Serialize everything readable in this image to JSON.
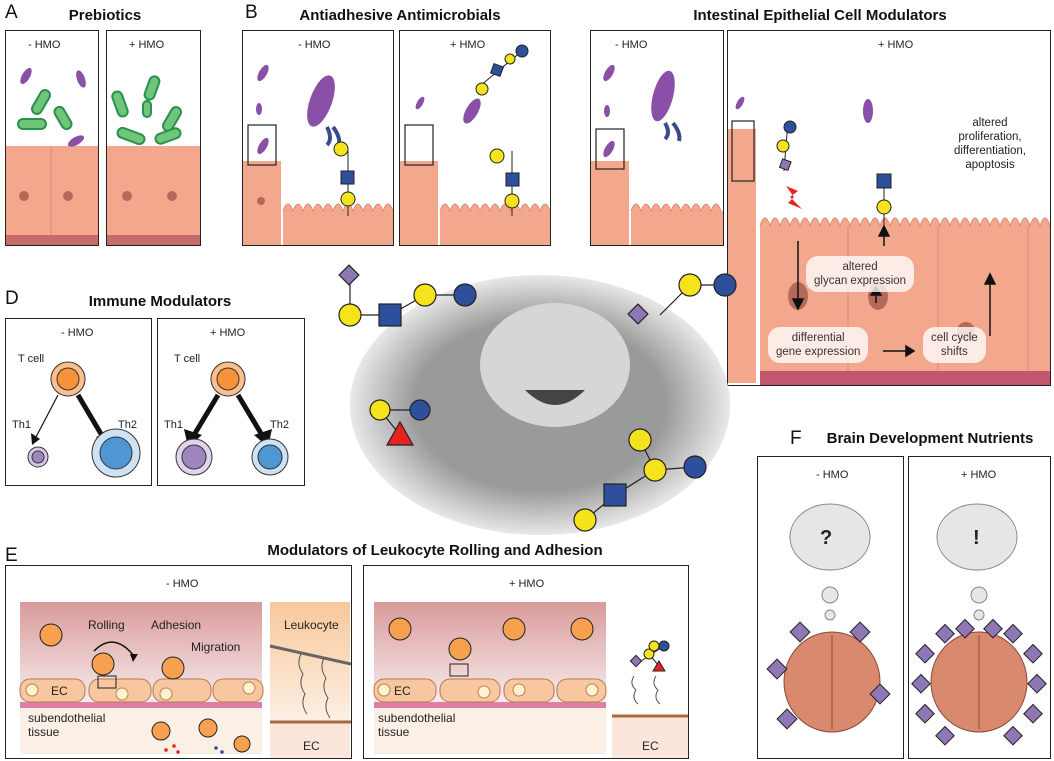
{
  "panel_a": {
    "letter": "A",
    "title": "Prebiotics",
    "minus": "- HMO",
    "plus": "+ HMO"
  },
  "panel_b": {
    "letter": "B",
    "title": "Antiadhesive Antimicrobials",
    "minus": "- HMO",
    "plus": "+ HMO"
  },
  "panel_c": {
    "title": "Intestinal Epithelial Cell Modulators",
    "minus": "- HMO",
    "plus": "+ HMO",
    "labels": {
      "glycan": "altered\nglycan expression",
      "gene": "differential\ngene expression",
      "cycle": "cell cycle\nshifts",
      "prolif": "altered\nproliferation,\ndifferentiation,\napoptosis"
    }
  },
  "panel_d": {
    "letter": "D",
    "title": "Immune Modulators",
    "minus": "- HMO",
    "plus": "+ HMO",
    "tcell": "T cell",
    "th1": "Th1",
    "th2": "Th2"
  },
  "panel_e": {
    "letter": "E",
    "title": "Modulators of Leukocyte Rolling and Adhesion",
    "minus": "- HMO",
    "plus": "+ HMO",
    "rolling": "Rolling",
    "adhesion": "Adhesion",
    "migration": "Migration",
    "ec": "EC",
    "tissue": "subendothelial\ntissue",
    "leukocyte": "Leukocyte"
  },
  "panel_f": {
    "letter": "F",
    "title": "Brain Development Nutrients",
    "minus": "- HMO",
    "plus": "+ HMO",
    "q": "?",
    "ex": "!"
  },
  "colors": {
    "glcnac": "#2e4f9b",
    "gal": "#f5e31b",
    "sia": "#8f77b5",
    "fuc": "#e8231f",
    "epithelium": "#f3a88e",
    "tcell": "#f7923a",
    "th": "#8fb7e0"
  }
}
